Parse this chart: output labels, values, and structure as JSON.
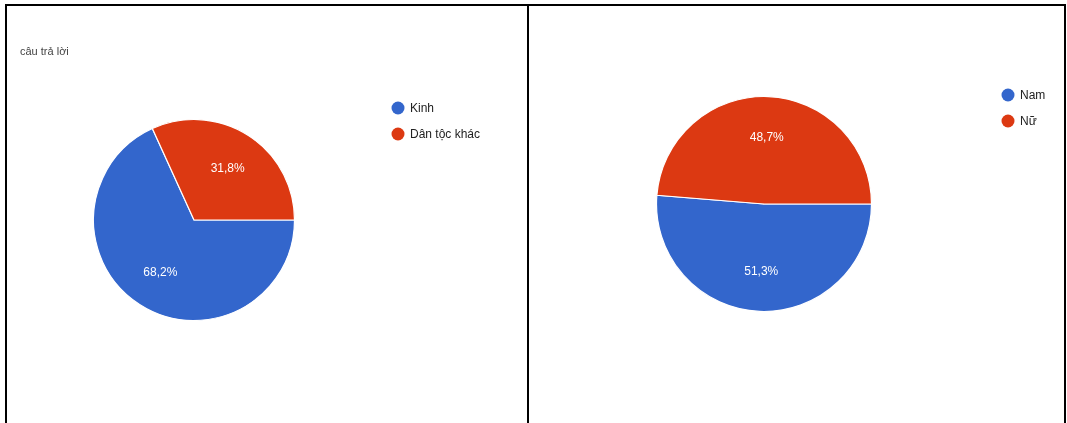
{
  "chart_data": [
    {
      "type": "pie",
      "subtitle": "câu trả lời",
      "categories": [
        "Kinh",
        "Dân tộc khác"
      ],
      "values": [
        68.2,
        31.8
      ],
      "colors": [
        "#3366cc",
        "#dc3912"
      ],
      "value_labels": [
        "68,2%",
        "31,8%"
      ],
      "legend": "top right"
    },
    {
      "type": "pie",
      "categories": [
        "Nam",
        "Nữ"
      ],
      "values": [
        51.3,
        48.7
      ],
      "colors": [
        "#3366cc",
        "#dc3912"
      ],
      "value_labels": [
        "51,3%",
        "48,7%"
      ],
      "legend": "top right"
    }
  ]
}
